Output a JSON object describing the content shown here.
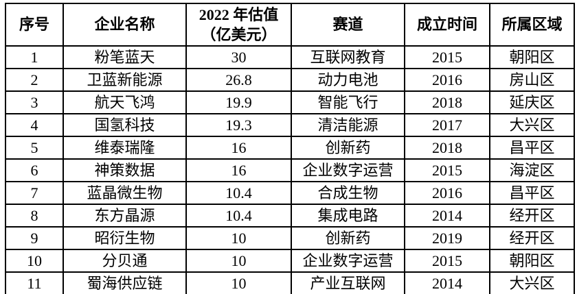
{
  "table": {
    "background": "#ffffff",
    "border_color": "#000000",
    "text_color": "#000000",
    "headers": {
      "seq": "序号",
      "name": "企业名称",
      "valuation": "2022 年估值\n（亿美元）",
      "track": "赛道",
      "founded": "成立时间",
      "district": "所属区域"
    },
    "rows": [
      {
        "seq": "1",
        "name": "粉笔蓝天",
        "valuation": "30",
        "track": "互联网教育",
        "founded": "2015",
        "district": "朝阳区"
      },
      {
        "seq": "2",
        "name": "卫蓝新能源",
        "valuation": "26.8",
        "track": "动力电池",
        "founded": "2016",
        "district": "房山区"
      },
      {
        "seq": "3",
        "name": "航天飞鸿",
        "valuation": "19.9",
        "track": "智能飞行",
        "founded": "2018",
        "district": "延庆区"
      },
      {
        "seq": "4",
        "name": "国氢科技",
        "valuation": "19.3",
        "track": "清洁能源",
        "founded": "2017",
        "district": "大兴区"
      },
      {
        "seq": "5",
        "name": "维泰瑞隆",
        "valuation": "16",
        "track": "创新药",
        "founded": "2018",
        "district": "昌平区"
      },
      {
        "seq": "6",
        "name": "神策数据",
        "valuation": "16",
        "track": "企业数字运营",
        "founded": "2015",
        "district": "海淀区"
      },
      {
        "seq": "7",
        "name": "蓝晶微生物",
        "valuation": "10.4",
        "track": "合成生物",
        "founded": "2016",
        "district": "昌平区"
      },
      {
        "seq": "8",
        "name": "东方晶源",
        "valuation": "10.4",
        "track": "集成电路",
        "founded": "2014",
        "district": "经开区"
      },
      {
        "seq": "9",
        "name": "昭衍生物",
        "valuation": "10",
        "track": "创新药",
        "founded": "2019",
        "district": "经开区"
      },
      {
        "seq": "10",
        "name": "分贝通",
        "valuation": "10",
        "track": "企业数字运营",
        "founded": "2015",
        "district": "朝阳区"
      },
      {
        "seq": "11",
        "name": "蜀海供应链",
        "valuation": "10",
        "track": "产业互联网",
        "founded": "2014",
        "district": "大兴区"
      }
    ]
  }
}
